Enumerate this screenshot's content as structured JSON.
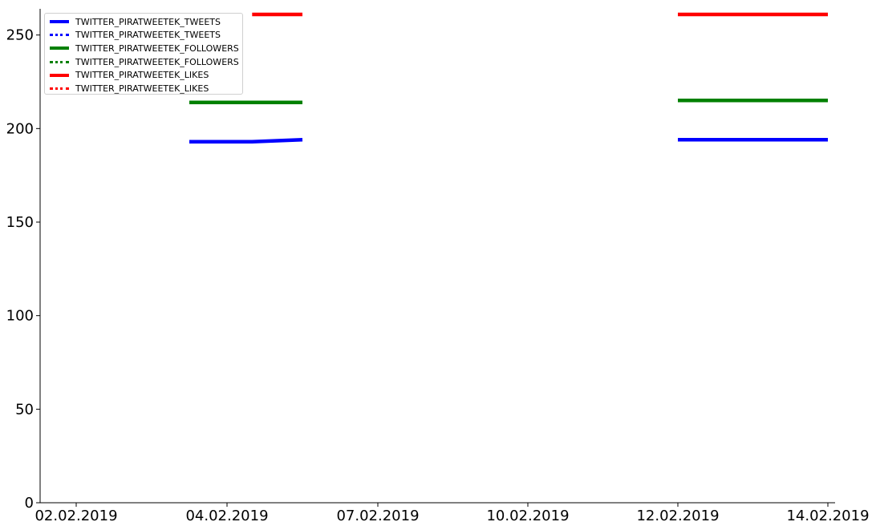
{
  "chart_data": {
    "type": "line",
    "x_dates": [
      "02.02.2019",
      "04.02.2019",
      "07.02.2019",
      "10.02.2019",
      "12.02.2019",
      "14.02.2019"
    ],
    "xlim": [
      "01.02.2019",
      "14.02.2019"
    ],
    "ylim": [
      0,
      264
    ],
    "yticks": [
      0,
      50,
      100,
      150,
      200,
      250
    ],
    "xtick_labels": [
      "02.02.2019",
      "04.02.2019",
      "07.02.2019",
      "10.02.2019",
      "12.02.2019",
      "14.02.2019"
    ],
    "grid": false,
    "legend_placement": "top-left",
    "series": [
      {
        "name": "TWITTER_PIRATWEETEK_TWEETS",
        "color": "#0000ff",
        "style": "solid",
        "segments": [
          [
            [
              "03.02.2019 12:00",
              193
            ],
            [
              "04.02.2019 12:00",
              193
            ],
            [
              "05.02.2019 12:00",
              194
            ]
          ],
          [
            [
              "12.02.2019",
              194
            ],
            [
              "14.02.2019",
              194
            ]
          ]
        ]
      },
      {
        "name": "TWITTER_PIRATWEETEK_TWEETS",
        "color": "#0000ff",
        "style": "dotted",
        "segments": []
      },
      {
        "name": "TWITTER_PIRATWEETEK_FOLLOWERS",
        "color": "#008000",
        "style": "solid",
        "segments": [
          [
            [
              "03.02.2019 12:00",
              214
            ],
            [
              "05.02.2019 12:00",
              214
            ]
          ],
          [
            [
              "12.02.2019",
              215
            ],
            [
              "14.02.2019",
              215
            ]
          ]
        ]
      },
      {
        "name": "TWITTER_PIRATWEETEK_FOLLOWERS",
        "color": "#008000",
        "style": "dotted",
        "segments": []
      },
      {
        "name": "TWITTER_PIRATWEETEK_LIKES",
        "color": "#ff0000",
        "style": "solid",
        "segments": [
          [
            [
              "04.02.2019 12:00",
              261
            ],
            [
              "05.02.2019 12:00",
              261
            ]
          ],
          [
            [
              "12.02.2019",
              261
            ],
            [
              "14.02.2019",
              261
            ]
          ]
        ]
      },
      {
        "name": "TWITTER_PIRATWEETEK_LIKES",
        "color": "#ff0000",
        "style": "dotted",
        "segments": []
      }
    ]
  }
}
